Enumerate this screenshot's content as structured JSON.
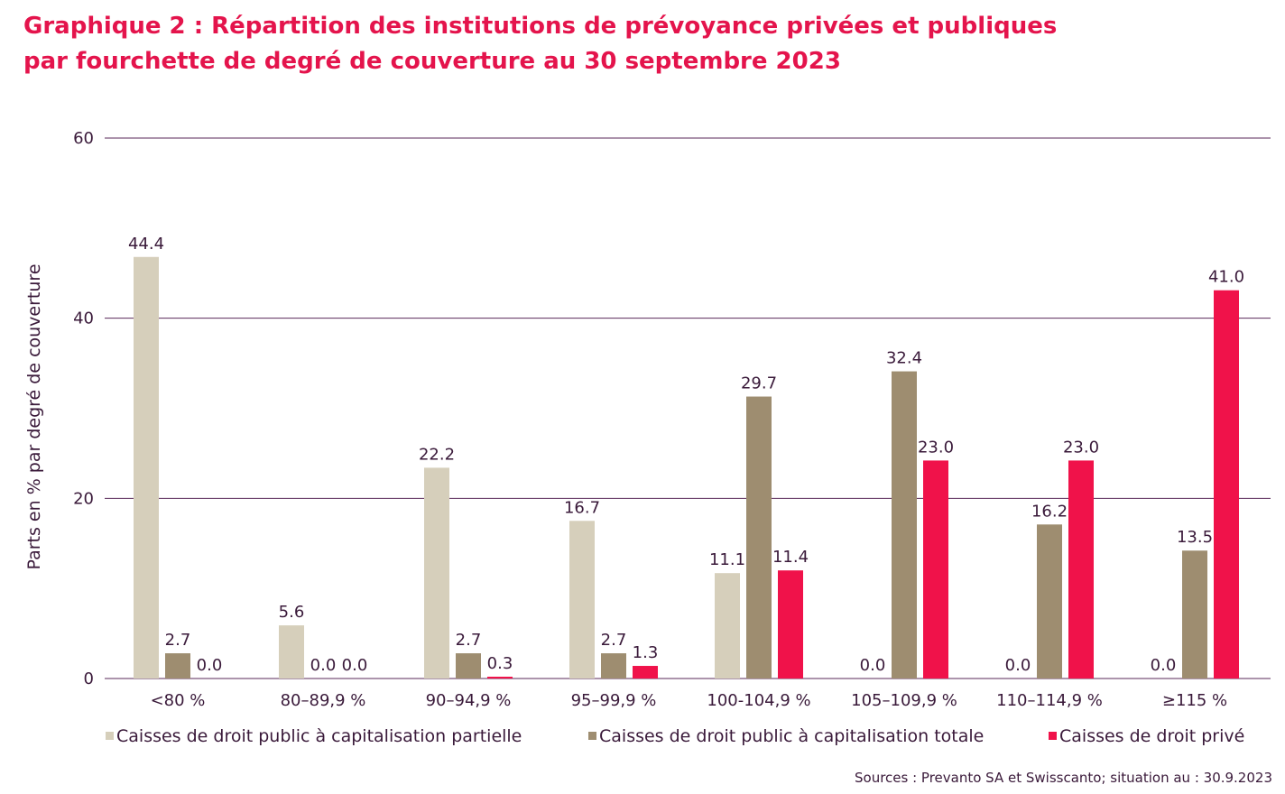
{
  "title_lines": [
    "Graphique 2 : Répartition des institutions de prévoyance privées et publiques",
    "par fourchette de degré de couverture au 30 septembre 2023"
  ],
  "source": "Sources : Prevanto SA et Swisscanto; situation au : 30.9.2023",
  "chart_data": {
    "type": "bar",
    "ylabel": "Parts en % par degré de couverture",
    "xlabel": "",
    "ylim": [
      0,
      60
    ],
    "yticks": [
      0,
      20,
      40,
      60
    ],
    "grid": true,
    "legend_position": "bottom",
    "categories": [
      "<80 %",
      "80–89,9 %",
      "90–94,9 %",
      "95–99,9 %",
      "100-104,9 %",
      "105–109,9 %",
      "110–114,9 %",
      "≥115 %"
    ],
    "series": [
      {
        "name": "Caisses de droit public à capitalisation partielle",
        "color": "#d6cfbb",
        "values": [
          44.4,
          5.6,
          22.2,
          16.7,
          11.1,
          0.0,
          0.0,
          0.0
        ],
        "labels": [
          "44.4",
          "5.6",
          "22.2",
          "16.7",
          "11.1",
          "0.0",
          "0.0",
          "0.0"
        ],
        "bar_heights": [
          46.8,
          5.9,
          23.4,
          17.5,
          11.7,
          0.0,
          0.0,
          0.0
        ]
      },
      {
        "name": "Caisses de droit public à capitalisation totale",
        "color": "#9e8d70",
        "values": [
          2.7,
          0.0,
          2.7,
          2.7,
          29.7,
          32.4,
          16.2,
          13.5
        ],
        "labels": [
          "2.7",
          "0.0",
          "2.7",
          "2.7",
          "29.7",
          "32.4",
          "16.2",
          "13.5"
        ],
        "bar_heights": [
          2.8,
          0.0,
          2.8,
          2.8,
          31.3,
          34.1,
          17.1,
          14.2
        ]
      },
      {
        "name": "Caisses de droit privé",
        "color": "#f0124a",
        "values": [
          0.0,
          0.0,
          0.3,
          1.3,
          11.4,
          23.0,
          23.0,
          41.0
        ],
        "labels": [
          "0.0",
          "0.0",
          "0.3",
          "1.3",
          "11.4",
          "23.0",
          "23.0",
          "41.0"
        ],
        "bar_heights": [
          0.0,
          0.0,
          0.2,
          1.4,
          12.0,
          24.2,
          24.2,
          43.1
        ]
      }
    ]
  },
  "colors": {
    "title": "#e4144c",
    "gridline": "#5a2a5a",
    "text": "#3a1a3a"
  }
}
